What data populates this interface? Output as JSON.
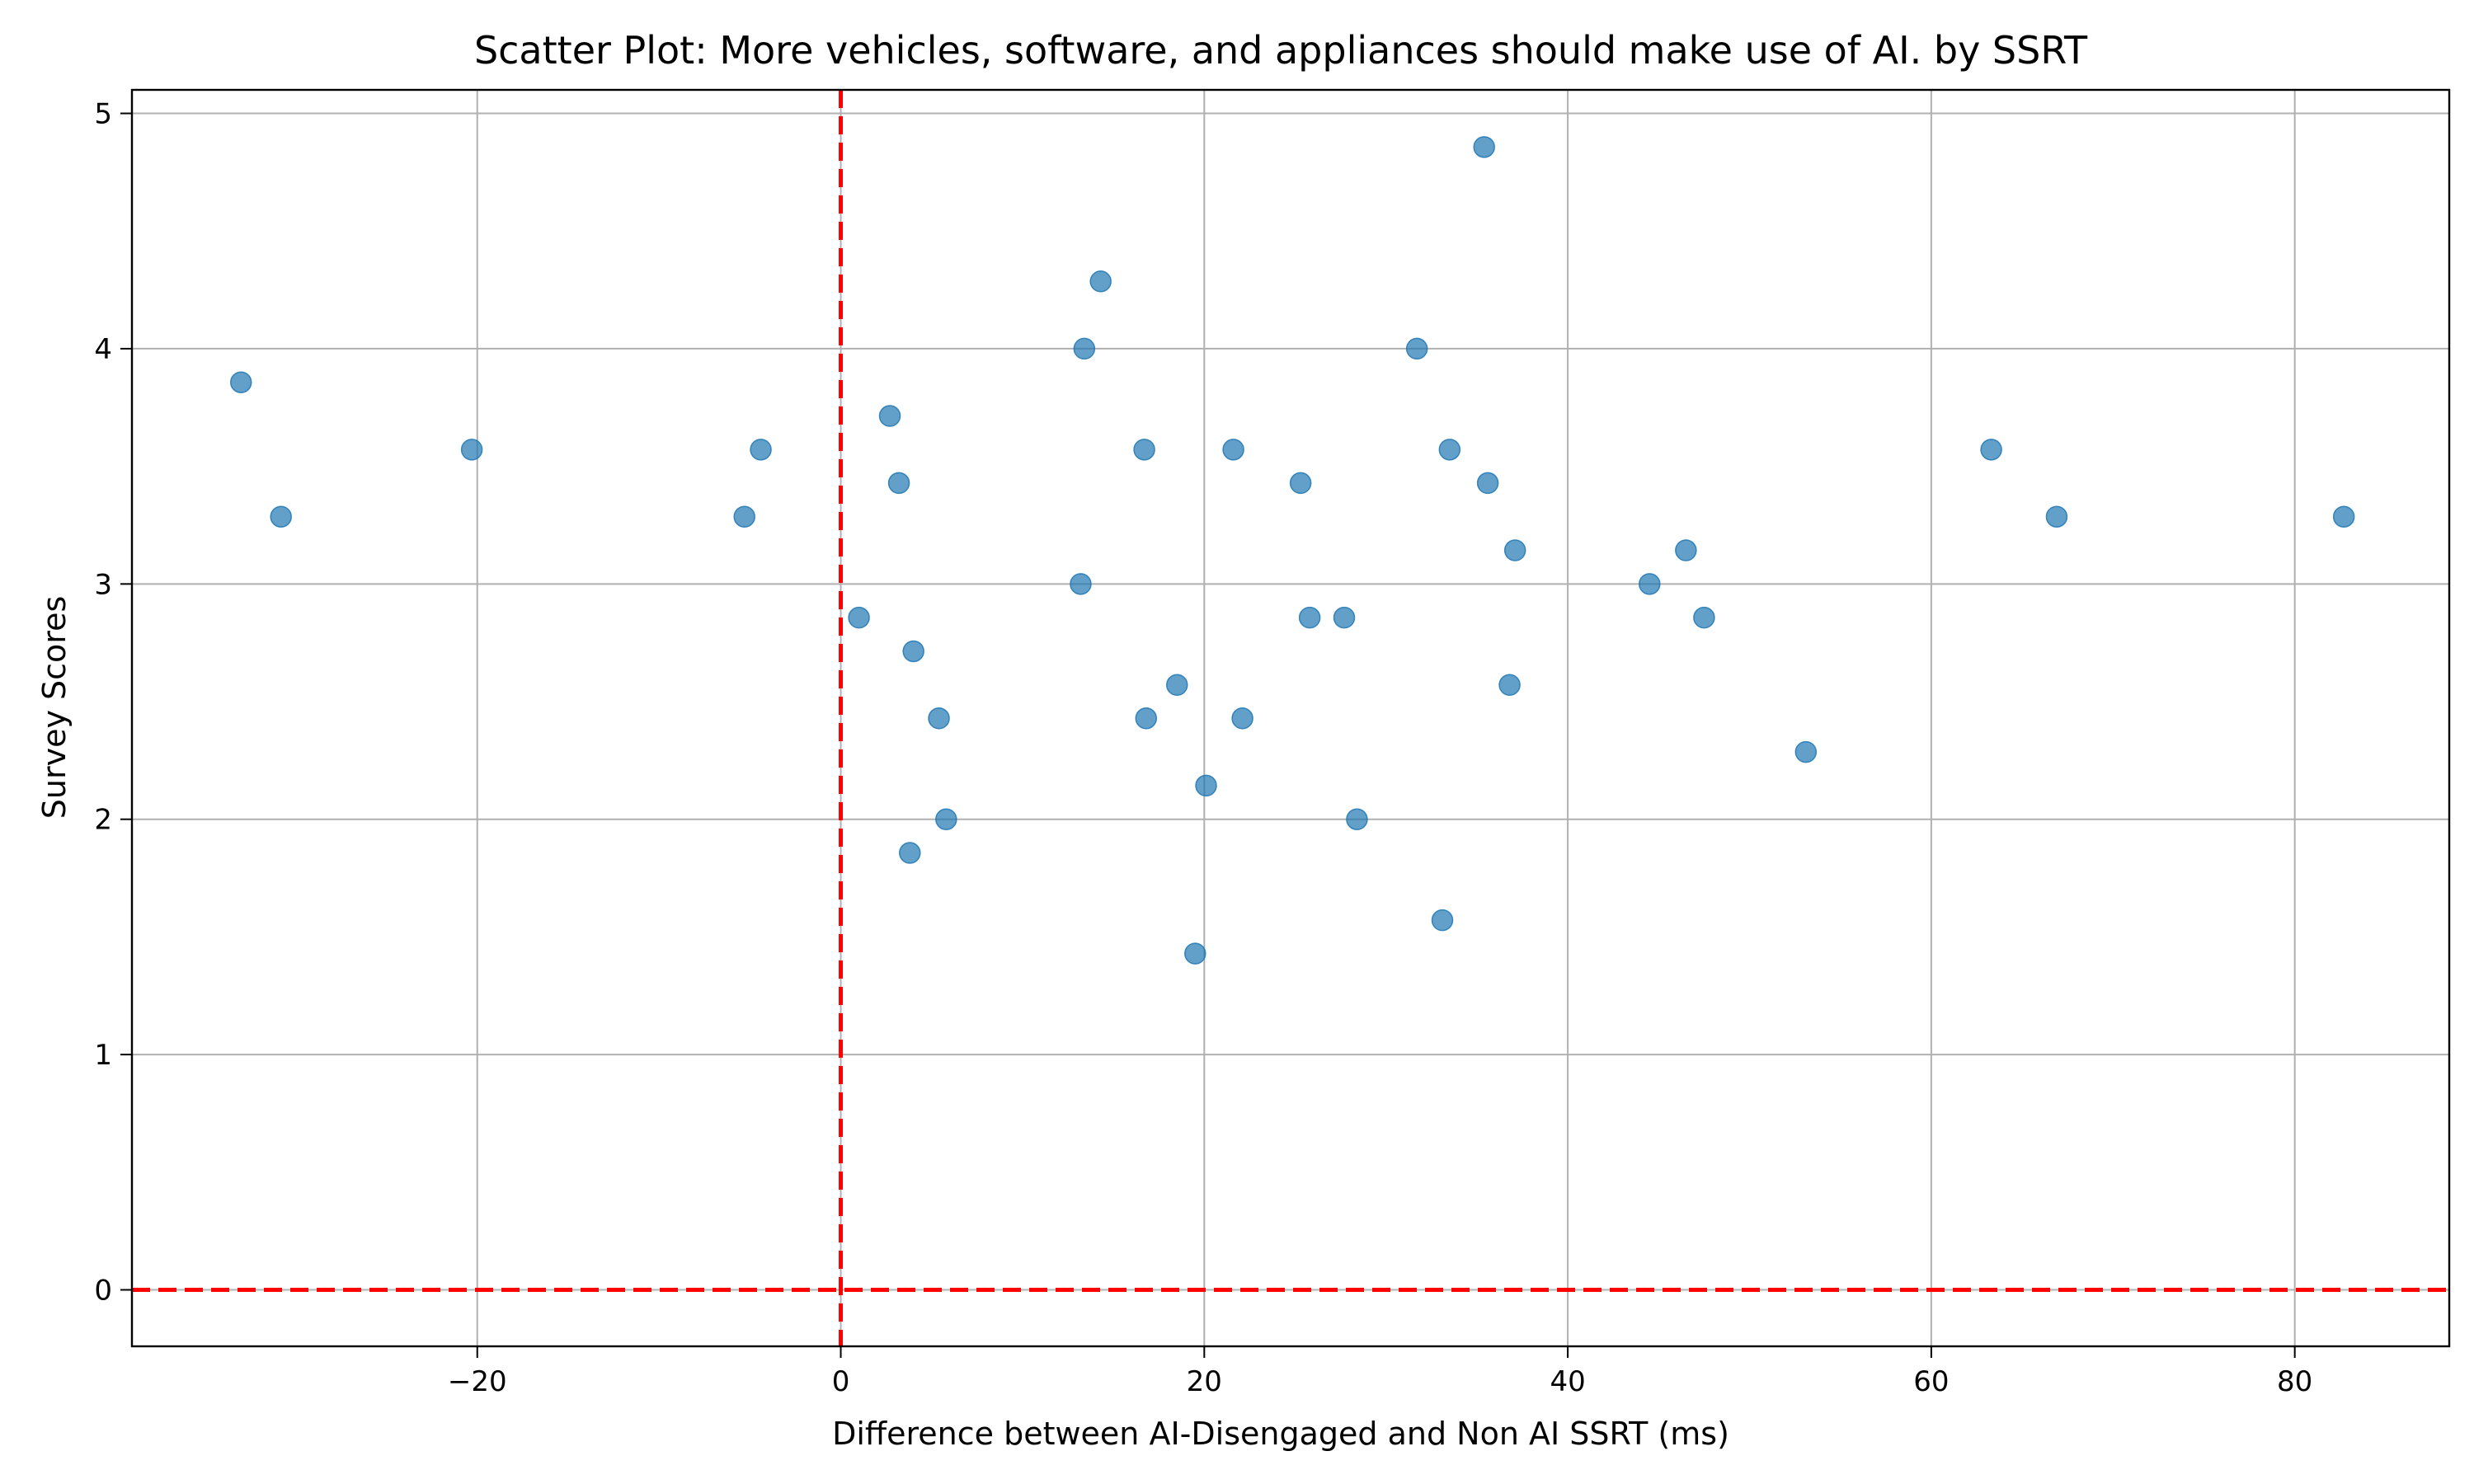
{
  "chart_data": {
    "type": "scatter",
    "title": "Scatter Plot: More vehicles, software, and appliances should make use of AI. by SSRT",
    "xlabel": "Difference between AI-Disengaged and Non AI SSRT (ms)",
    "ylabel": "Survey Scores",
    "xlim": [
      -39,
      88.5
    ],
    "ylim": [
      -0.24,
      5.1
    ],
    "xticks": [
      -20,
      0,
      20,
      40,
      60,
      80
    ],
    "xtick_labels": [
      "−20",
      "0",
      "20",
      "40",
      "60",
      "80"
    ],
    "yticks": [
      0,
      1,
      2,
      3,
      4,
      5
    ],
    "ytick_labels": [
      "0",
      "1",
      "2",
      "3",
      "4",
      "5"
    ],
    "grid": true,
    "reference_lines": {
      "x": 0,
      "y": 0,
      "color": "#ff0000",
      "style": "dashed"
    },
    "point_color": "#1f77b4",
    "points": [
      {
        "x": -33.0,
        "y": 3.857
      },
      {
        "x": -30.8,
        "y": 3.286
      },
      {
        "x": -20.3,
        "y": 3.571
      },
      {
        "x": -5.3,
        "y": 3.286
      },
      {
        "x": -4.4,
        "y": 3.571
      },
      {
        "x": 1.0,
        "y": 2.857
      },
      {
        "x": 2.7,
        "y": 3.714
      },
      {
        "x": 3.2,
        "y": 3.429
      },
      {
        "x": 3.8,
        "y": 1.857
      },
      {
        "x": 4.0,
        "y": 2.714
      },
      {
        "x": 5.4,
        "y": 2.429
      },
      {
        "x": 5.8,
        "y": 2.0
      },
      {
        "x": 13.2,
        "y": 3.0
      },
      {
        "x": 13.4,
        "y": 4.0
      },
      {
        "x": 14.3,
        "y": 4.286
      },
      {
        "x": 16.7,
        "y": 3.571
      },
      {
        "x": 16.8,
        "y": 2.429
      },
      {
        "x": 18.5,
        "y": 2.571
      },
      {
        "x": 19.5,
        "y": 1.429
      },
      {
        "x": 20.1,
        "y": 2.143
      },
      {
        "x": 21.6,
        "y": 3.571
      },
      {
        "x": 22.1,
        "y": 2.429
      },
      {
        "x": 25.3,
        "y": 3.429
      },
      {
        "x": 25.8,
        "y": 2.857
      },
      {
        "x": 27.7,
        "y": 2.857
      },
      {
        "x": 28.4,
        "y": 2.0
      },
      {
        "x": 31.7,
        "y": 4.0
      },
      {
        "x": 33.1,
        "y": 1.571
      },
      {
        "x": 33.5,
        "y": 3.571
      },
      {
        "x": 35.4,
        "y": 4.857
      },
      {
        "x": 35.6,
        "y": 3.429
      },
      {
        "x": 36.8,
        "y": 2.571
      },
      {
        "x": 37.1,
        "y": 3.143
      },
      {
        "x": 44.5,
        "y": 3.0
      },
      {
        "x": 46.5,
        "y": 3.143
      },
      {
        "x": 47.5,
        "y": 2.857
      },
      {
        "x": 53.1,
        "y": 2.286
      },
      {
        "x": 63.3,
        "y": 3.571
      },
      {
        "x": 66.9,
        "y": 3.286
      },
      {
        "x": 82.7,
        "y": 3.286
      }
    ]
  }
}
